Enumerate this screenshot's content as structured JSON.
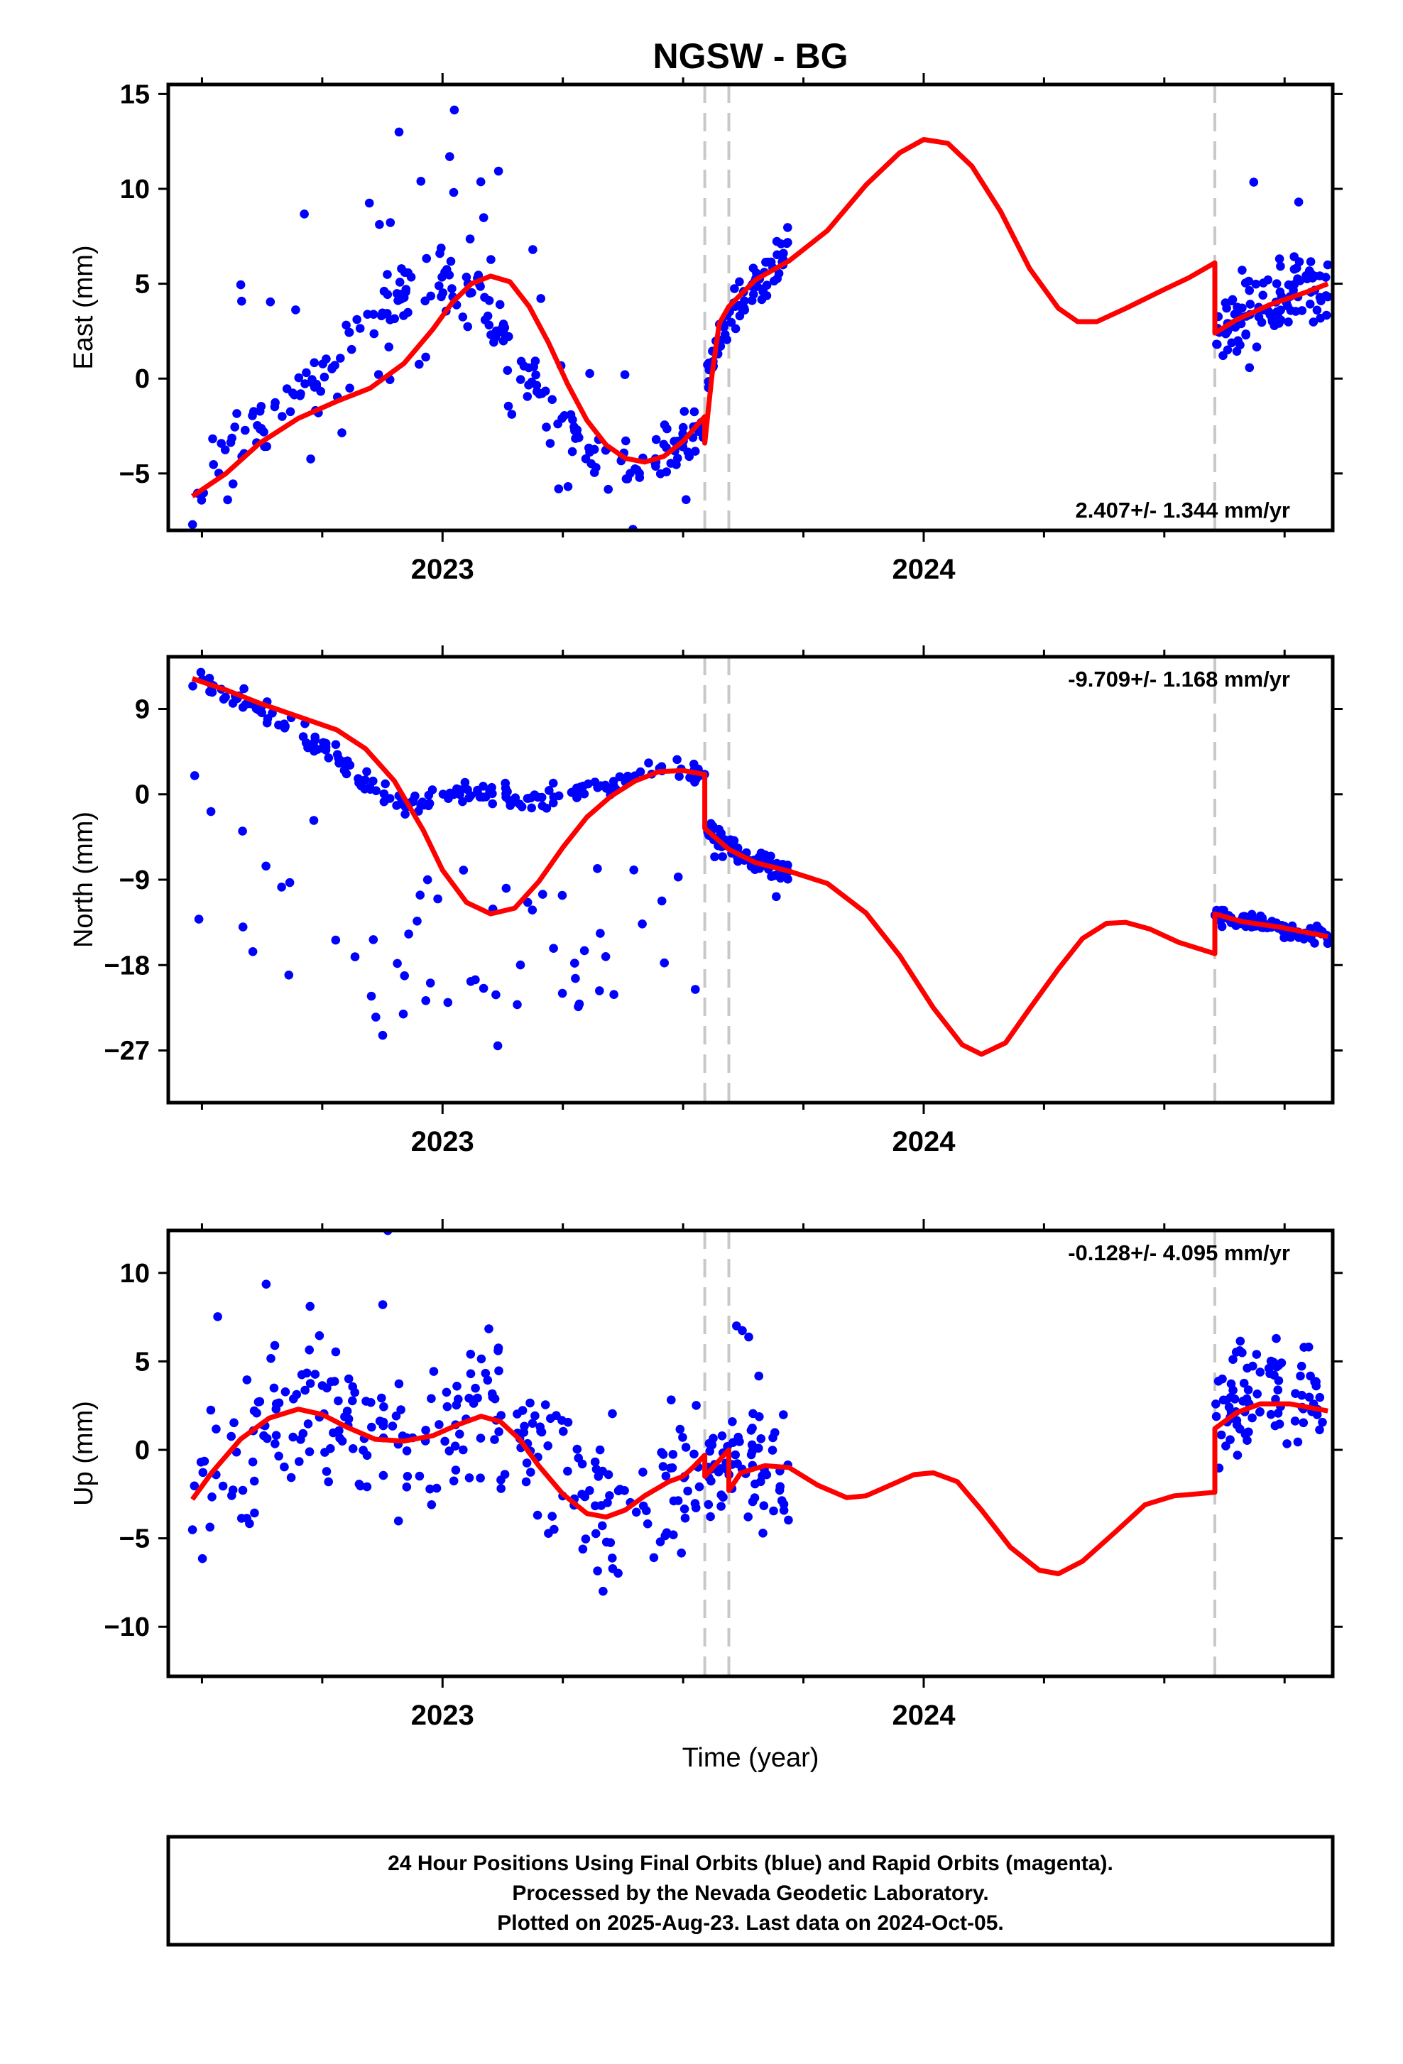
{
  "title": "NGSW - BG",
  "xlabel": "Time (year)",
  "footer": {
    "line1": "24 Hour Positions Using Final Orbits (blue) and Rapid Orbits (magenta).",
    "line2": "Processed by the Nevada Geodetic Laboratory.",
    "line3": "Plotted on 2025-Aug-23. Last data on 2024-Oct-05."
  },
  "colors": {
    "data": "#0000ff",
    "model": "#ff0000",
    "breaks": "#c8c8c8",
    "frame": "#000000"
  },
  "chart_data": [
    {
      "type": "scatter",
      "name": "east",
      "ylabel": "East (mm)",
      "rate": "2.407+/- 1.344 mm/yr",
      "xlim": [
        2022.43,
        2024.85
      ],
      "ylim": [
        -8,
        15.5
      ],
      "yticks": [
        15,
        10,
        5,
        0,
        -5
      ],
      "yticklabels": [
        "15",
        "10",
        "5",
        "0",
        "−5"
      ],
      "xticks": [
        2023,
        2024
      ],
      "xticklabels": [
        "2023",
        "2024"
      ],
      "breaks": [
        2023.545,
        2023.595,
        2024.605
      ],
      "model": [
        [
          2022.48,
          -6.2
        ],
        [
          2022.55,
          -5.0
        ],
        [
          2022.62,
          -3.4
        ],
        [
          2022.7,
          -2.1
        ],
        [
          2022.78,
          -1.2
        ],
        [
          2022.85,
          -0.5
        ],
        [
          2022.92,
          0.8
        ],
        [
          2022.98,
          2.6
        ],
        [
          2023.02,
          4.0
        ],
        [
          2023.06,
          5.0
        ],
        [
          2023.1,
          5.4
        ],
        [
          2023.14,
          5.1
        ],
        [
          2023.18,
          3.8
        ],
        [
          2023.22,
          1.9
        ],
        [
          2023.26,
          -0.3
        ],
        [
          2023.3,
          -2.2
        ],
        [
          2023.34,
          -3.5
        ],
        [
          2023.38,
          -4.2
        ],
        [
          2023.42,
          -4.4
        ],
        [
          2023.46,
          -4.1
        ],
        [
          2023.5,
          -3.3
        ],
        [
          2023.545,
          -2.0
        ],
        [
          2023.545,
          -3.4
        ],
        [
          2023.56,
          0.2
        ],
        [
          2023.575,
          2.9
        ],
        [
          2023.595,
          3.8
        ],
        [
          2023.65,
          5.2
        ],
        [
          2023.72,
          6.2
        ],
        [
          2023.8,
          7.8
        ],
        [
          2023.88,
          10.2
        ],
        [
          2023.95,
          11.9
        ],
        [
          2024.0,
          12.6
        ],
        [
          2024.05,
          12.4
        ],
        [
          2024.1,
          11.2
        ],
        [
          2024.16,
          8.8
        ],
        [
          2024.22,
          5.8
        ],
        [
          2024.28,
          3.7
        ],
        [
          2024.32,
          3.0
        ],
        [
          2024.36,
          3.0
        ],
        [
          2024.42,
          3.7
        ],
        [
          2024.5,
          4.7
        ],
        [
          2024.55,
          5.3
        ],
        [
          2024.605,
          6.1
        ],
        [
          2024.605,
          2.4
        ],
        [
          2024.65,
          3.1
        ],
        [
          2024.72,
          3.9
        ],
        [
          2024.8,
          4.6
        ],
        [
          2024.84,
          5.0
        ]
      ],
      "segments": [
        {
          "x0": 2022.48,
          "x1": 2023.545,
          "y": [
            -6.2,
            -5.0,
            -3.4,
            -2.1,
            -1.2,
            -0.5,
            0.8,
            2.6,
            4.0,
            5.0,
            5.4,
            5.1,
            3.8,
            1.9,
            -0.3,
            -2.2,
            -3.5,
            -4.2,
            -4.4,
            -4.1,
            -3.3,
            -2.0
          ],
          "noise": 1.2,
          "outlier": 0.18,
          "outlierAmp": 7,
          "n": 260,
          "seed": 11
        },
        {
          "x0": 2023.55,
          "x1": 2023.72,
          "y": [
            -0.5,
            3.0,
            4.0,
            5.0,
            5.8,
            7.0
          ],
          "noise": 0.9,
          "outlier": 0.02,
          "outlierAmp": 2,
          "n": 70,
          "seed": 12
        },
        {
          "x0": 2024.605,
          "x1": 2024.84,
          "y": [
            2.5,
            3.2,
            4.0,
            4.6,
            5.0
          ],
          "noise": 1.3,
          "outlier": 0.05,
          "outlierAmp": 4,
          "n": 110,
          "seed": 13
        }
      ]
    },
    {
      "type": "scatter",
      "name": "north",
      "ylabel": "North (mm)",
      "rate": "-9.709+/- 1.168 mm/yr",
      "xlim": [
        2022.43,
        2024.85
      ],
      "ylim": [
        -32.5,
        14.5
      ],
      "yticks": [
        9,
        0,
        -9,
        -18,
        -27
      ],
      "yticklabels": [
        "9",
        "0",
        "−9",
        "−18",
        "−27"
      ],
      "xticks": [
        2023,
        2024
      ],
      "xticklabels": [
        "2023",
        "2024"
      ],
      "breaks": [
        2023.545,
        2023.595,
        2024.605
      ],
      "model": [
        [
          2022.48,
          12.2
        ],
        [
          2022.55,
          11.0
        ],
        [
          2022.62,
          9.6
        ],
        [
          2022.7,
          8.2
        ],
        [
          2022.78,
          6.8
        ],
        [
          2022.84,
          4.8
        ],
        [
          2022.9,
          1.4
        ],
        [
          2022.96,
          -3.8
        ],
        [
          2023.0,
          -8.0
        ],
        [
          2023.05,
          -11.4
        ],
        [
          2023.1,
          -12.6
        ],
        [
          2023.15,
          -12.0
        ],
        [
          2023.2,
          -9.2
        ],
        [
          2023.25,
          -5.6
        ],
        [
          2023.3,
          -2.4
        ],
        [
          2023.35,
          -0.2
        ],
        [
          2023.4,
          1.4
        ],
        [
          2023.45,
          2.4
        ],
        [
          2023.5,
          2.5
        ],
        [
          2023.545,
          2.1
        ],
        [
          2023.545,
          -3.6
        ],
        [
          2023.595,
          -5.8
        ],
        [
          2023.65,
          -7.2
        ],
        [
          2023.72,
          -8.1
        ],
        [
          2023.8,
          -9.4
        ],
        [
          2023.88,
          -12.5
        ],
        [
          2023.95,
          -17.0
        ],
        [
          2024.02,
          -22.5
        ],
        [
          2024.08,
          -26.4
        ],
        [
          2024.12,
          -27.4
        ],
        [
          2024.17,
          -26.2
        ],
        [
          2024.22,
          -22.6
        ],
        [
          2024.28,
          -18.4
        ],
        [
          2024.33,
          -15.2
        ],
        [
          2024.38,
          -13.6
        ],
        [
          2024.42,
          -13.5
        ],
        [
          2024.47,
          -14.2
        ],
        [
          2024.53,
          -15.6
        ],
        [
          2024.605,
          -16.8
        ],
        [
          2024.605,
          -12.6
        ],
        [
          2024.66,
          -13.4
        ],
        [
          2024.74,
          -14.0
        ],
        [
          2024.8,
          -14.6
        ],
        [
          2024.84,
          -15.0
        ]
      ],
      "segments": [
        {
          "x0": 2022.48,
          "x1": 2023.545,
          "y": [
            12.2,
            11.0,
            9.6,
            8.2,
            6.8,
            4.8,
            2.0,
            0.0,
            -1.0,
            -0.5,
            0.4,
            0.0,
            -0.5,
            -0.5,
            0.0,
            0.8,
            1.4,
            2.4,
            2.5,
            2.1
          ],
          "noise": 0.9,
          "outlier": 0.22,
          "outlierAmp": -20,
          "n": 260,
          "seed": 21
        },
        {
          "x0": 2023.55,
          "x1": 2023.72,
          "y": [
            -3.8,
            -5.0,
            -6.0,
            -6.8,
            -7.6,
            -8.4
          ],
          "noise": 0.8,
          "outlier": 0.02,
          "outlierAmp": -2,
          "n": 70,
          "seed": 22
        },
        {
          "x0": 2024.605,
          "x1": 2024.84,
          "y": [
            -12.6,
            -13.2,
            -13.9,
            -14.5,
            -15.0
          ],
          "noise": 0.7,
          "outlier": 0.02,
          "outlierAmp": -1,
          "n": 110,
          "seed": 23
        }
      ]
    },
    {
      "type": "scatter",
      "name": "up",
      "ylabel": "Up (mm)",
      "rate": "-0.128+/- 4.095 mm/yr",
      "xlim": [
        2022.43,
        2024.85
      ],
      "ylim": [
        -12.8,
        12.4
      ],
      "yticks": [
        10,
        5,
        0,
        -5,
        -10
      ],
      "yticklabels": [
        "10",
        "5",
        "0",
        "−5",
        "−10"
      ],
      "xticks": [
        2023,
        2024
      ],
      "xticklabels": [
        "2023",
        "2024"
      ],
      "breaks": [
        2023.545,
        2023.595,
        2024.605
      ],
      "model": [
        [
          2022.48,
          -2.8
        ],
        [
          2022.52,
          -1.3
        ],
        [
          2022.58,
          0.6
        ],
        [
          2022.64,
          1.8
        ],
        [
          2022.7,
          2.3
        ],
        [
          2022.75,
          2.0
        ],
        [
          2022.8,
          1.3
        ],
        [
          2022.86,
          0.6
        ],
        [
          2022.92,
          0.5
        ],
        [
          2022.98,
          0.8
        ],
        [
          2023.03,
          1.4
        ],
        [
          2023.08,
          1.9
        ],
        [
          2023.12,
          1.6
        ],
        [
          2023.16,
          0.6
        ],
        [
          2023.2,
          -0.9
        ],
        [
          2023.25,
          -2.5
        ],
        [
          2023.3,
          -3.6
        ],
        [
          2023.34,
          -3.8
        ],
        [
          2023.38,
          -3.4
        ],
        [
          2023.42,
          -2.6
        ],
        [
          2023.47,
          -1.8
        ],
        [
          2023.5,
          -1.5
        ],
        [
          2023.52,
          -1.0
        ],
        [
          2023.545,
          -0.3
        ],
        [
          2023.545,
          -1.5
        ],
        [
          2023.575,
          -0.6
        ],
        [
          2023.595,
          0.0
        ],
        [
          2023.595,
          -2.3
        ],
        [
          2023.62,
          -1.3
        ],
        [
          2023.67,
          -0.9
        ],
        [
          2023.72,
          -1.0
        ],
        [
          2023.78,
          -2.0
        ],
        [
          2023.84,
          -2.7
        ],
        [
          2023.88,
          -2.6
        ],
        [
          2023.93,
          -2.0
        ],
        [
          2023.98,
          -1.4
        ],
        [
          2024.02,
          -1.3
        ],
        [
          2024.07,
          -1.8
        ],
        [
          2024.12,
          -3.4
        ],
        [
          2024.18,
          -5.5
        ],
        [
          2024.24,
          -6.8
        ],
        [
          2024.28,
          -7.0
        ],
        [
          2024.33,
          -6.3
        ],
        [
          2024.4,
          -4.6
        ],
        [
          2024.46,
          -3.1
        ],
        [
          2024.52,
          -2.6
        ],
        [
          2024.605,
          -2.4
        ],
        [
          2024.605,
          1.2
        ],
        [
          2024.65,
          2.1
        ],
        [
          2024.7,
          2.6
        ],
        [
          2024.76,
          2.6
        ],
        [
          2024.84,
          2.2
        ]
      ],
      "segments": [
        {
          "x0": 2022.48,
          "x1": 2023.545,
          "y": [
            -2.8,
            -1.3,
            0.6,
            1.8,
            2.3,
            2.0,
            1.3,
            0.6,
            0.5,
            0.8,
            1.4,
            1.9,
            1.6,
            0.6,
            -0.9,
            -2.5,
            -3.6,
            -3.8,
            -3.2,
            -2.2,
            -1.0
          ],
          "noise": 3.2,
          "outlier": 0.05,
          "outlierAmp": 6,
          "n": 270,
          "seed": 31
        },
        {
          "x0": 2023.55,
          "x1": 2023.72,
          "y": [
            -1.5,
            -0.6,
            -1.0,
            -1.0,
            -1.2,
            -1.5
          ],
          "noise": 2.6,
          "outlier": 0.04,
          "outlierAmp": 5,
          "n": 70,
          "seed": 32
        },
        {
          "x0": 2024.605,
          "x1": 2024.84,
          "y": [
            1.5,
            2.5,
            3.0,
            3.2,
            2.5
          ],
          "noise": 2.6,
          "outlier": 0.04,
          "outlierAmp": 4,
          "n": 90,
          "seed": 33
        }
      ]
    }
  ]
}
